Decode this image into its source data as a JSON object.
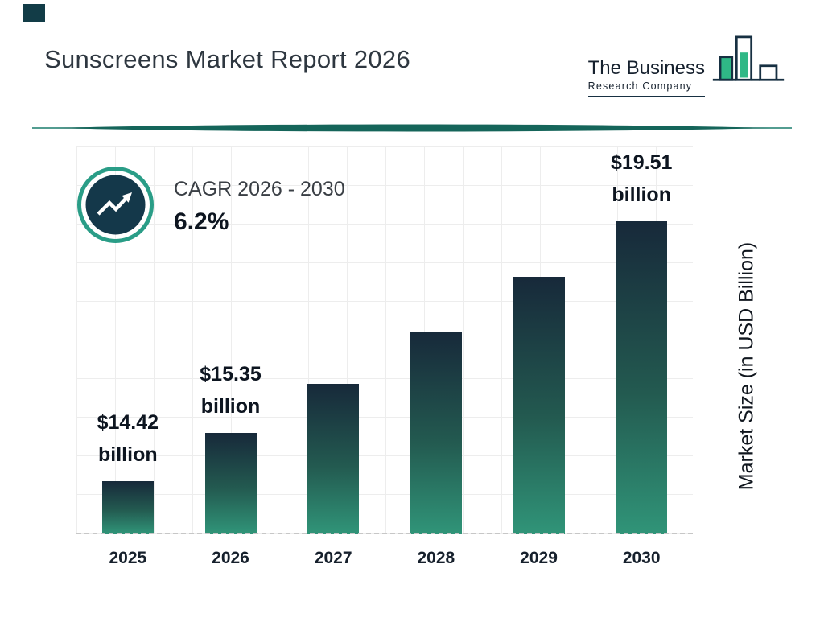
{
  "header": {
    "title": "Sunscreens Market Report 2026",
    "logo": {
      "name_line1": "The Business",
      "name_line2": "Research Company"
    }
  },
  "cagr_badge": {
    "label": "CAGR 2026 - 2030",
    "value": "6.2%",
    "icon": "trend-up-arrow-icon"
  },
  "chart_data": {
    "type": "bar",
    "title": "Sunscreens Market Report 2026",
    "categories": [
      "2025",
      "2026",
      "2027",
      "2028",
      "2029",
      "2030"
    ],
    "values": [
      14.42,
      15.35,
      16.3,
      17.31,
      18.38,
      19.51
    ],
    "value_labels": [
      {
        "amount": "$14.42",
        "unit": "billion"
      },
      {
        "amount": "$15.35",
        "unit": "billion"
      },
      null,
      null,
      null,
      {
        "amount": "$19.51",
        "unit": "billion"
      }
    ],
    "xlabel": "",
    "ylabel": "Market Size (in USD Billion)",
    "ylim": [
      13.4,
      20.9
    ],
    "grid": true,
    "legend": false,
    "cagr_percent": 6.2,
    "colors": {
      "bar_gradient_top": "#17293a",
      "bar_gradient_bottom": "#309478",
      "accent_teal": "#1a7d6d",
      "logo_green": "#2fb886",
      "logo_navy": "#173042"
    }
  }
}
